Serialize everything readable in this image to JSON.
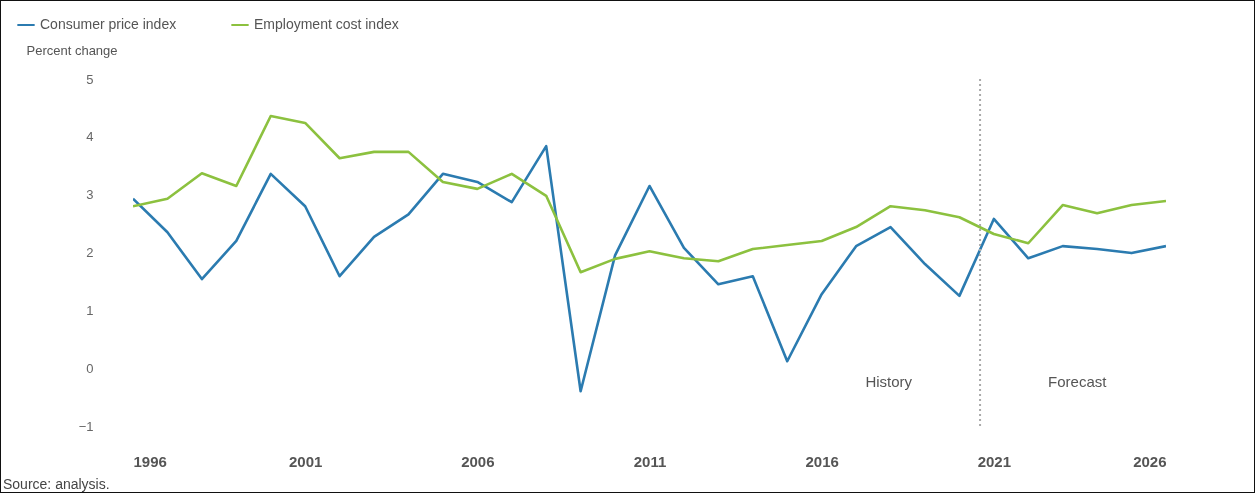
{
  "chart_data": {
    "type": "line",
    "ylabel": "Percent change",
    "x": [
      1996,
      1997,
      1998,
      1999,
      2000,
      2001,
      2002,
      2003,
      2004,
      2005,
      2006,
      2007,
      2008,
      2009,
      2010,
      2011,
      2012,
      2013,
      2014,
      2015,
      2016,
      2017,
      2018,
      2019,
      2020,
      2021,
      2022,
      2023,
      2024,
      2025,
      2026
    ],
    "series": [
      {
        "name": "Consumer price index",
        "color": "#2b7bb0",
        "values": [
          2.93,
          2.35,
          1.54,
          2.2,
          3.36,
          2.8,
          1.59,
          2.27,
          2.66,
          3.36,
          3.22,
          2.87,
          3.84,
          -0.4,
          1.95,
          3.15,
          2.08,
          1.45,
          1.59,
          0.12,
          1.28,
          2.11,
          2.44,
          1.8,
          1.25,
          2.58,
          1.9,
          2.11,
          2.06,
          1.99,
          2.11
        ]
      },
      {
        "name": "Employment cost index",
        "color": "#8cc13f",
        "values": [
          2.8,
          2.93,
          3.37,
          3.15,
          4.36,
          4.24,
          3.63,
          3.74,
          3.74,
          3.22,
          3.1,
          3.36,
          2.98,
          1.66,
          1.89,
          2.02,
          1.9,
          1.85,
          2.06,
          2.13,
          2.2,
          2.44,
          2.8,
          2.73,
          2.61,
          2.32,
          2.16,
          2.82,
          2.68,
          2.82,
          2.89
        ]
      }
    ],
    "xlim": [
      1996,
      2026
    ],
    "xticks": [
      1996,
      2001,
      2006,
      2011,
      2016,
      2021,
      2026
    ],
    "ylim": [
      -1,
      5
    ],
    "yticks": [
      {
        "value": -1,
        "label": "−1"
      },
      0,
      1,
      2,
      3,
      4,
      5
    ],
    "ref_lines": [
      {
        "axis": "x",
        "value": 2020.6,
        "color": "#aaaaaa",
        "line_style": "dotted"
      }
    ],
    "annotations": [
      "History",
      "Forecast",
      "Source: analysis."
    ],
    "grid": false,
    "legend": "top left",
    "marker": "none",
    "line_style": "solid"
  }
}
